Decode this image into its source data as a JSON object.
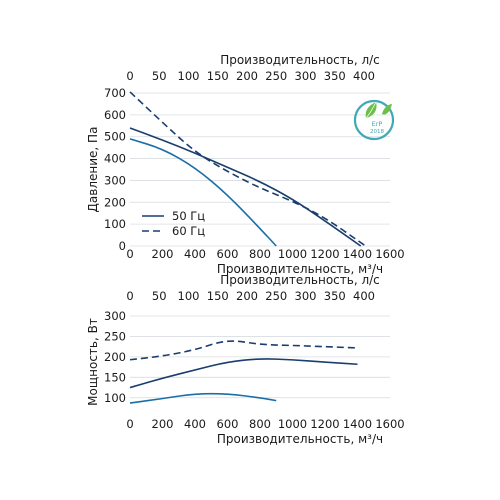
{
  "chart_data": [
    {
      "type": "line",
      "id": "pressure",
      "xlabel": "Производительность, м³/ч",
      "x2label": "Производительность, л/с",
      "ylabel": "Давление, Па",
      "xlim": [
        0,
        1600
      ],
      "x2lim": [
        0,
        444.4
      ],
      "ylim": [
        0,
        700
      ],
      "xticks": [
        0,
        200,
        400,
        600,
        800,
        1000,
        1200,
        1400,
        1600
      ],
      "x2ticks": [
        0,
        50,
        100,
        150,
        200,
        250,
        300,
        350,
        400
      ],
      "yticks": [
        0,
        100,
        200,
        300,
        400,
        500,
        600,
        700
      ],
      "grid": true,
      "legend": {
        "placement": "bottom-left",
        "entries": [
          {
            "label": "50 Гц",
            "style": "solid"
          },
          {
            "label": "60 Гц",
            "style": "dashed"
          }
        ]
      },
      "series": [
        {
          "name": "50 Гц",
          "style": "solid",
          "color": "#1a6fa8",
          "x": [
            0,
            200,
            400,
            600,
            800,
            900
          ],
          "y": [
            490,
            445,
            360,
            235,
            80,
            0
          ]
        },
        {
          "name": "50 Гц",
          "style": "solid",
          "color": "#1a3e6e",
          "x": [
            0,
            200,
            400,
            600,
            800,
            1000,
            1200,
            1420
          ],
          "y": [
            540,
            485,
            425,
            360,
            295,
            215,
            115,
            0
          ]
        },
        {
          "name": "60 Гц",
          "style": "dashed",
          "color": "#1a3e6e",
          "x": [
            0,
            200,
            400,
            600,
            800,
            1000,
            1200,
            1450
          ],
          "y": [
            705,
            565,
            430,
            340,
            265,
            205,
            130,
            0
          ]
        }
      ]
    },
    {
      "type": "line",
      "id": "power",
      "xlabel": "Производительность, м³/ч",
      "x2label": "Производительность, л/с",
      "ylabel": "Мощность, Вт",
      "xlim": [
        0,
        1600
      ],
      "x2lim": [
        0,
        444.4
      ],
      "ylim": [
        75,
        300
      ],
      "xticks": [
        0,
        200,
        400,
        600,
        800,
        1000,
        1200,
        1400,
        1600
      ],
      "x2ticks": [
        0,
        50,
        100,
        150,
        200,
        250,
        300,
        350,
        400
      ],
      "yticks": [
        100,
        150,
        200,
        250,
        300
      ],
      "grid": true,
      "series": [
        {
          "name": "50 Гц",
          "style": "solid",
          "color": "#1a6fa8",
          "x": [
            0,
            200,
            400,
            600,
            800,
            900
          ],
          "y": [
            87,
            98,
            110,
            110,
            100,
            93
          ]
        },
        {
          "name": "50 Гц",
          "style": "solid",
          "color": "#1a3e6e",
          "x": [
            0,
            200,
            400,
            600,
            800,
            1000,
            1200,
            1400
          ],
          "y": [
            125,
            148,
            168,
            188,
            196,
            193,
            187,
            182
          ]
        },
        {
          "name": "60 Гц",
          "style": "dashed",
          "color": "#1a3e6e",
          "x": [
            0,
            200,
            400,
            600,
            800,
            1000,
            1200,
            1400
          ],
          "y": [
            193,
            202,
            217,
            243,
            230,
            228,
            225,
            222
          ]
        }
      ]
    }
  ],
  "badge": {
    "text": "ErP",
    "year": "2018",
    "color": "#3fa9b5",
    "leaf_color": "#6cbf4a"
  }
}
